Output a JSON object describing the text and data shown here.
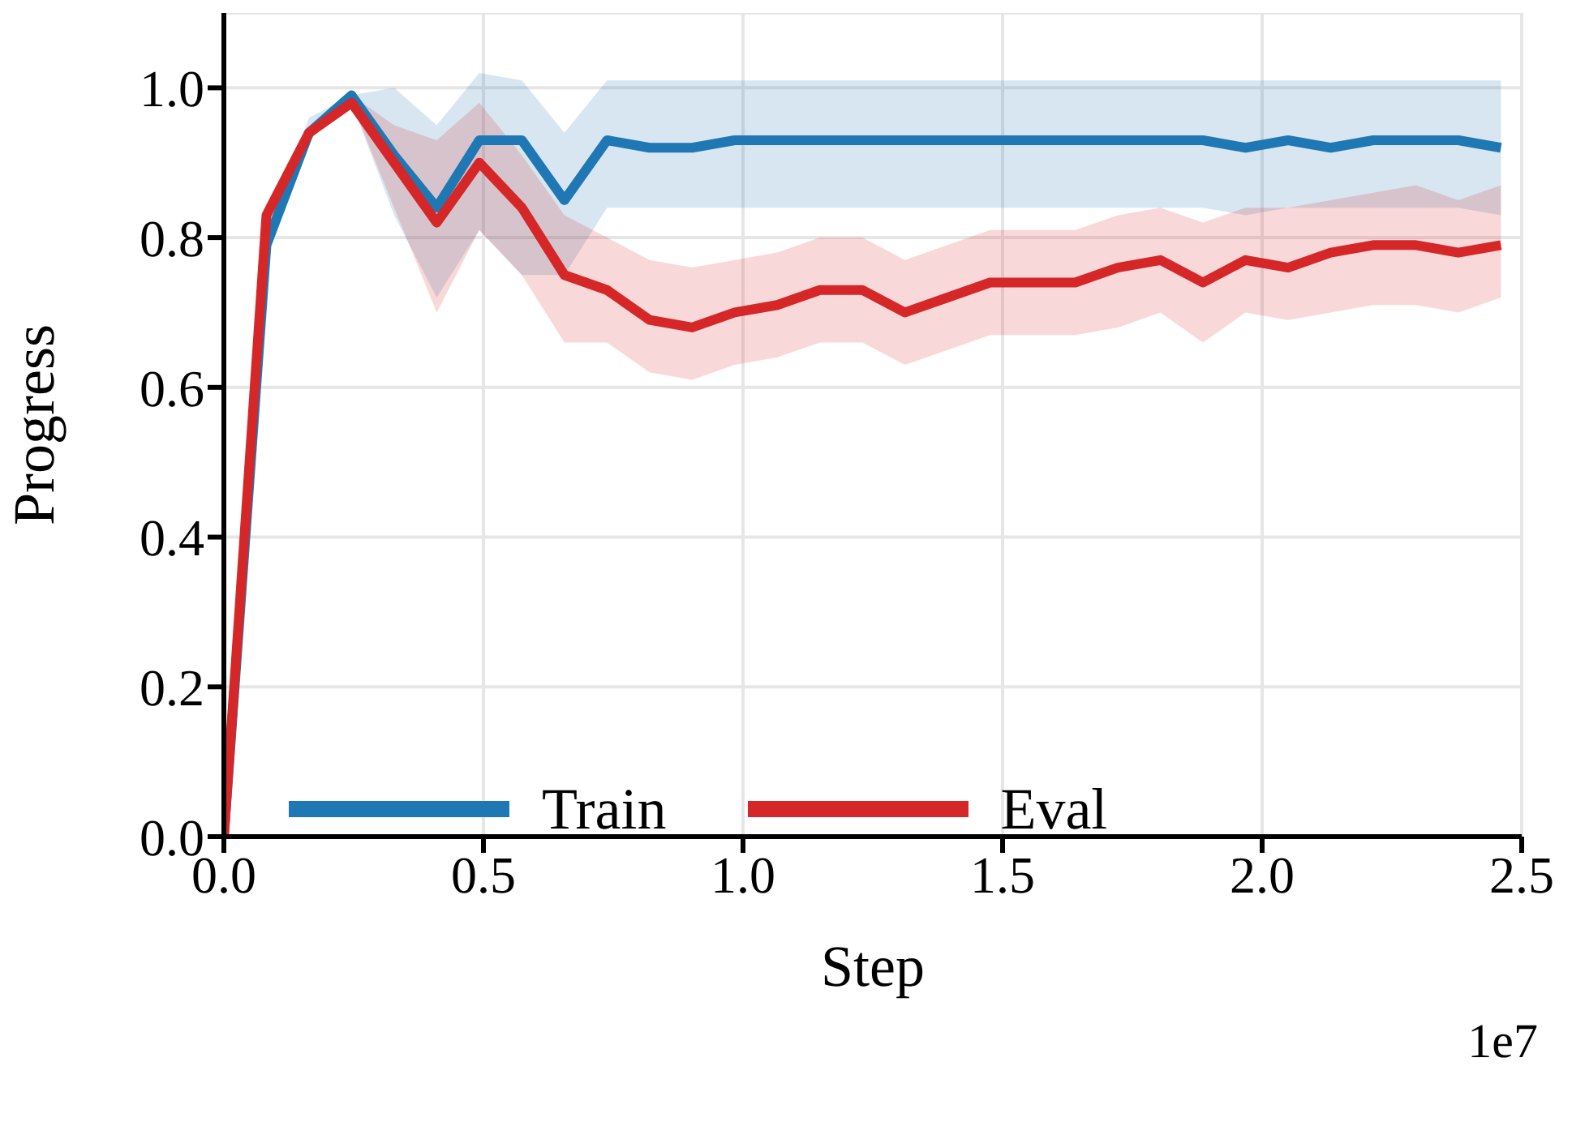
{
  "chart_data": {
    "type": "line",
    "xlabel": "Step",
    "ylabel": "Progress",
    "annotations": [
      "1e7"
    ],
    "x": [
      0,
      0.082,
      0.164,
      0.246,
      0.328,
      0.41,
      0.492,
      0.574,
      0.656,
      0.738,
      0.82,
      0.902,
      0.984,
      1.066,
      1.148,
      1.23,
      1.312,
      1.394,
      1.476,
      1.558,
      1.64,
      1.722,
      1.804,
      1.886,
      1.968,
      2.05,
      2.132,
      2.214,
      2.296,
      2.378,
      2.46
    ],
    "series": [
      {
        "name": "Train",
        "color": "#1f77b4",
        "values": [
          0,
          0.79,
          0.94,
          0.99,
          0.91,
          0.84,
          0.93,
          0.93,
          0.85,
          0.93,
          0.92,
          0.92,
          0.93,
          0.93,
          0.93,
          0.93,
          0.93,
          0.93,
          0.93,
          0.93,
          0.93,
          0.93,
          0.93,
          0.93,
          0.92,
          0.93,
          0.92,
          0.93,
          0.93,
          0.93,
          0.92
        ],
        "lower": [
          0,
          0.78,
          0.93,
          0.98,
          0.83,
          0.72,
          0.81,
          0.75,
          0.75,
          0.84,
          0.84,
          0.84,
          0.84,
          0.84,
          0.84,
          0.84,
          0.84,
          0.84,
          0.84,
          0.84,
          0.84,
          0.84,
          0.84,
          0.84,
          0.83,
          0.84,
          0.84,
          0.84,
          0.84,
          0.84,
          0.83
        ],
        "upper": [
          0,
          0.81,
          0.96,
          0.99,
          1.0,
          0.95,
          1.02,
          1.01,
          0.94,
          1.01,
          1.01,
          1.01,
          1.01,
          1.01,
          1.01,
          1.01,
          1.01,
          1.01,
          1.01,
          1.01,
          1.01,
          1.01,
          1.01,
          1.01,
          1.01,
          1.01,
          1.01,
          1.01,
          1.01,
          1.01,
          1.01
        ]
      },
      {
        "name": "Eval",
        "color": "#d62728",
        "values": [
          0,
          0.83,
          0.94,
          0.98,
          0.9,
          0.82,
          0.9,
          0.84,
          0.75,
          0.73,
          0.69,
          0.68,
          0.7,
          0.71,
          0.73,
          0.73,
          0.7,
          0.72,
          0.74,
          0.74,
          0.74,
          0.76,
          0.77,
          0.74,
          0.77,
          0.76,
          0.78,
          0.79,
          0.79,
          0.78,
          0.79
        ],
        "lower": [
          0,
          0.81,
          0.93,
          0.98,
          0.84,
          0.7,
          0.81,
          0.75,
          0.66,
          0.66,
          0.62,
          0.61,
          0.63,
          0.64,
          0.66,
          0.66,
          0.63,
          0.65,
          0.67,
          0.67,
          0.67,
          0.68,
          0.7,
          0.66,
          0.7,
          0.69,
          0.7,
          0.71,
          0.71,
          0.7,
          0.72
        ],
        "upper": [
          0,
          0.84,
          0.94,
          0.99,
          0.95,
          0.93,
          0.98,
          0.91,
          0.83,
          0.8,
          0.77,
          0.76,
          0.77,
          0.78,
          0.8,
          0.8,
          0.77,
          0.79,
          0.81,
          0.81,
          0.81,
          0.83,
          0.84,
          0.82,
          0.84,
          0.84,
          0.85,
          0.86,
          0.87,
          0.85,
          0.87
        ]
      }
    ],
    "xlim": [
      0,
      2.5
    ],
    "xticks": [
      {
        "value": 0,
        "label": "0.0"
      },
      0.5,
      {
        "value": 1,
        "label": "1.0"
      },
      1.5,
      {
        "value": 2,
        "label": "2.0"
      },
      2.5
    ],
    "ylim": [
      0,
      1.1
    ],
    "yticks": [
      {
        "value": 0,
        "label": "0.0"
      },
      {
        "value": 0.2,
        "label": "0.2"
      },
      {
        "value": 0.4,
        "label": "0.4"
      },
      {
        "value": 0.6,
        "label": "0.6"
      },
      {
        "value": 0.8,
        "label": "0.8"
      },
      {
        "value": 1,
        "label": "1.0"
      }
    ],
    "grid": true,
    "legend": "bottom left",
    "line_style": "solid",
    "marker": "none"
  }
}
